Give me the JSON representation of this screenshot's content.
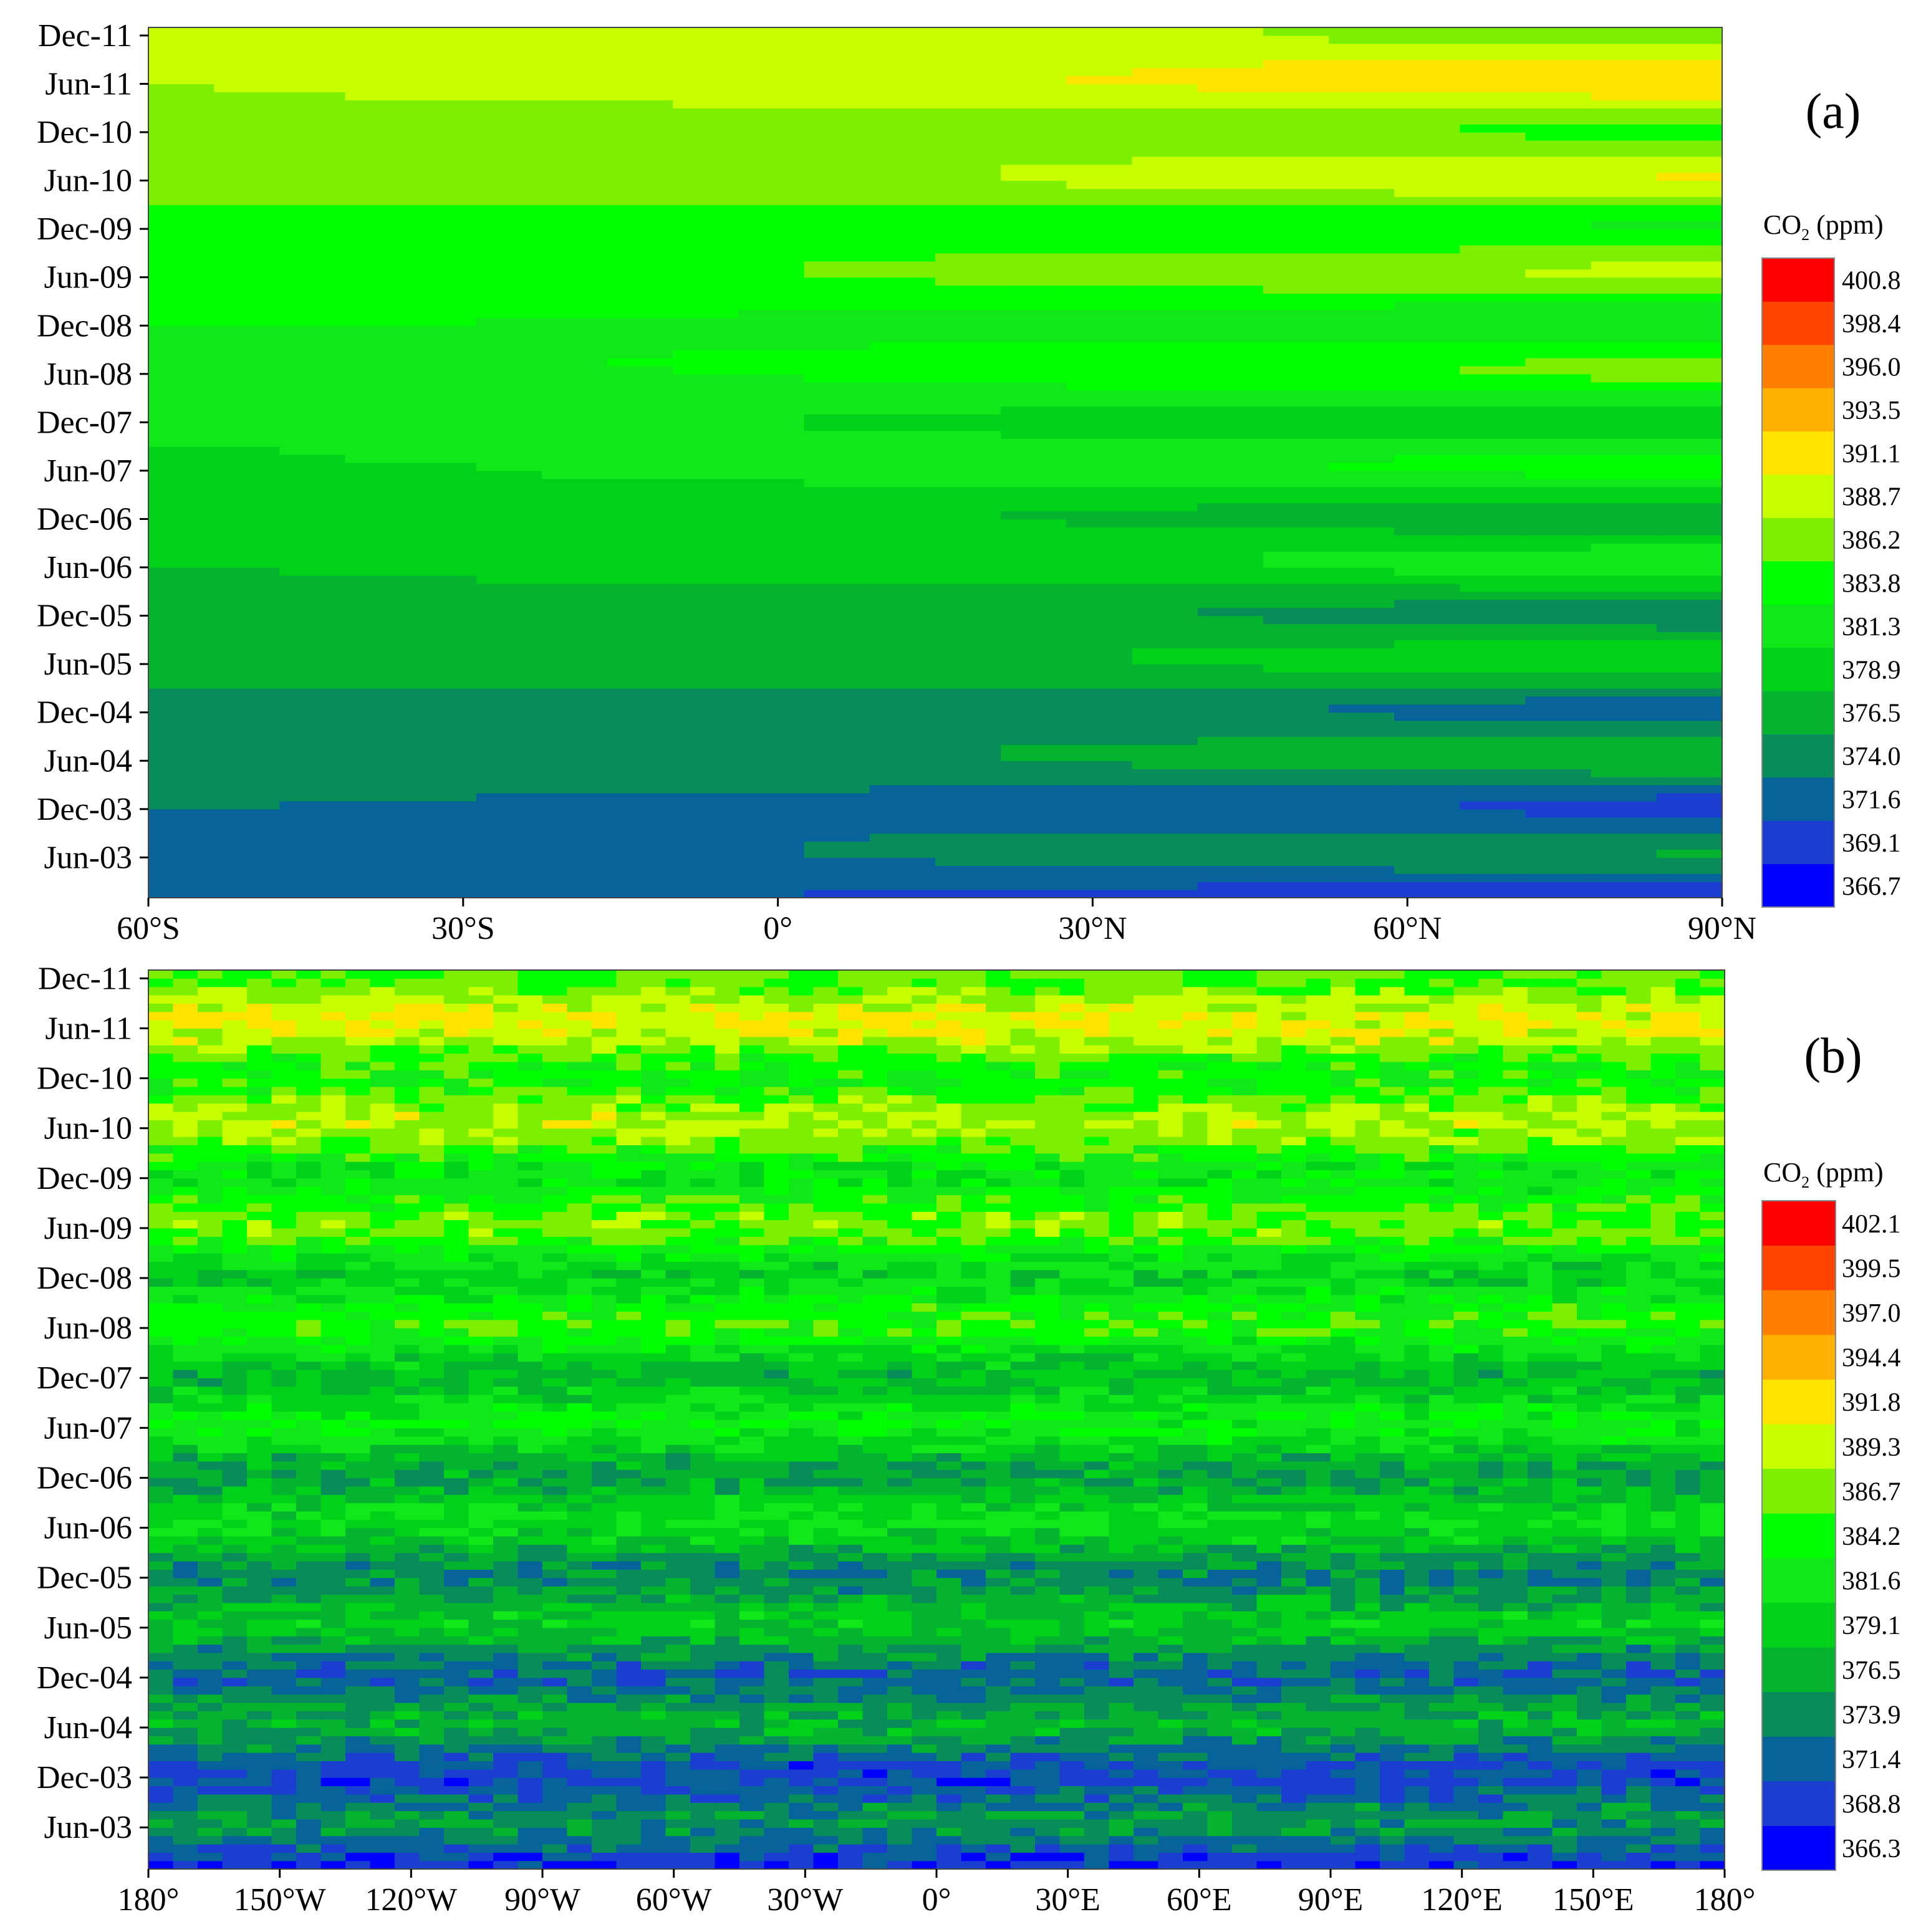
{
  "chart_data": [
    {
      "type": "heatmap",
      "panel_label": "(a)",
      "xlabel": "",
      "ylabel": "",
      "x_tick_labels": [
        "60°S",
        "30°S",
        "0°",
        "30°N",
        "60°N",
        "90°N"
      ],
      "x_ticks": [
        -60,
        -30,
        0,
        30,
        60,
        90
      ],
      "xlim": [
        -60,
        90
      ],
      "y_tick_labels": [
        "Jun-03",
        "Dec-03",
        "Jun-04",
        "Dec-04",
        "Jun-05",
        "Dec-05",
        "Jun-06",
        "Dec-06",
        "Jun-07",
        "Dec-07",
        "Jun-08",
        "Dec-08",
        "Jun-09",
        "Dec-09",
        "Jun-10",
        "Dec-10",
        "Jun-11",
        "Dec-11"
      ],
      "y_ticks": [
        "2003-06",
        "2003-12",
        "2004-06",
        "2004-12",
        "2005-06",
        "2005-12",
        "2006-06",
        "2006-12",
        "2007-06",
        "2007-12",
        "2008-06",
        "2008-12",
        "2009-06",
        "2009-12",
        "2010-06",
        "2010-12",
        "2011-06",
        "2011-12"
      ],
      "ylim": [
        "2003-01",
        "2011-12"
      ],
      "colorbar": {
        "title_main": "CO",
        "title_sub": "2",
        "title_unit": " (ppm)",
        "levels": [
          366.7,
          369.1,
          371.6,
          374.0,
          376.5,
          378.9,
          381.3,
          383.8,
          386.2,
          388.7,
          391.1,
          393.5,
          396.0,
          398.4,
          400.8
        ],
        "colors": [
          "#0000ff",
          "#1a3fd0",
          "#06649a",
          "#088c5a",
          "#04b42e",
          "#00d21a",
          "#10e81a",
          "#00ff00",
          "#7cf000",
          "#c8ff00",
          "#ffe400",
          "#ffb000",
          "#ff8000",
          "#ff4400",
          "#ff0000"
        ]
      },
      "trend": {
        "time_start": 2003.0,
        "time_end": 2012.0,
        "base_value": 371.0,
        "growth_per_year": 2.0,
        "seasonal_amplitude": 2.2,
        "seasonal_peak_month": 5,
        "noise_amplitude": 0.0
      }
    },
    {
      "type": "heatmap",
      "panel_label": "(b)",
      "xlabel": "",
      "ylabel": "",
      "x_tick_labels": [
        "180°",
        "150°W",
        "120°W",
        "90°W",
        "60°W",
        "30°W",
        "0°",
        "30°E",
        "60°E",
        "90°E",
        "120°E",
        "150°E",
        "180°"
      ],
      "x_ticks": [
        -180,
        -150,
        -120,
        -90,
        -60,
        -30,
        0,
        30,
        60,
        90,
        120,
        150,
        180
      ],
      "xlim": [
        -180,
        180
      ],
      "y_tick_labels": [
        "Jun-03",
        "Dec-03",
        "Jun-04",
        "Dec-04",
        "Jun-05",
        "Dec-05",
        "Jun-06",
        "Dec-06",
        "Jun-07",
        "Dec-07",
        "Jun-08",
        "Dec-08",
        "Jun-09",
        "Dec-09",
        "Jun-10",
        "Dec-10",
        "Jun-11",
        "Dec-11"
      ],
      "y_ticks": [
        "2003-06",
        "2003-12",
        "2004-06",
        "2004-12",
        "2005-06",
        "2005-12",
        "2006-06",
        "2006-12",
        "2007-06",
        "2007-12",
        "2008-06",
        "2008-12",
        "2009-06",
        "2009-12",
        "2010-06",
        "2010-12",
        "2011-06",
        "2011-12"
      ],
      "ylim": [
        "2003-01",
        "2011-12"
      ],
      "colorbar": {
        "title_main": "CO",
        "title_sub": "2",
        "title_unit": " (ppm)",
        "levels": [
          366.3,
          368.8,
          371.4,
          373.9,
          376.5,
          379.1,
          381.6,
          384.2,
          386.7,
          389.3,
          391.8,
          394.4,
          397.0,
          399.5,
          402.1
        ],
        "colors": [
          "#0000ff",
          "#1a3fd0",
          "#06649a",
          "#088c5a",
          "#04b42e",
          "#00d21a",
          "#10e81a",
          "#00ff00",
          "#7cf000",
          "#c8ff00",
          "#ffe400",
          "#ffb000",
          "#ff8000",
          "#ff4400",
          "#ff0000"
        ]
      },
      "trend": {
        "time_start": 2003.0,
        "time_end": 2012.0,
        "base_value": 370.5,
        "growth_per_year": 2.0,
        "seasonal_amplitude": 3.0,
        "seasonal_peak_month": 5,
        "noise_amplitude": 2.5
      }
    }
  ]
}
